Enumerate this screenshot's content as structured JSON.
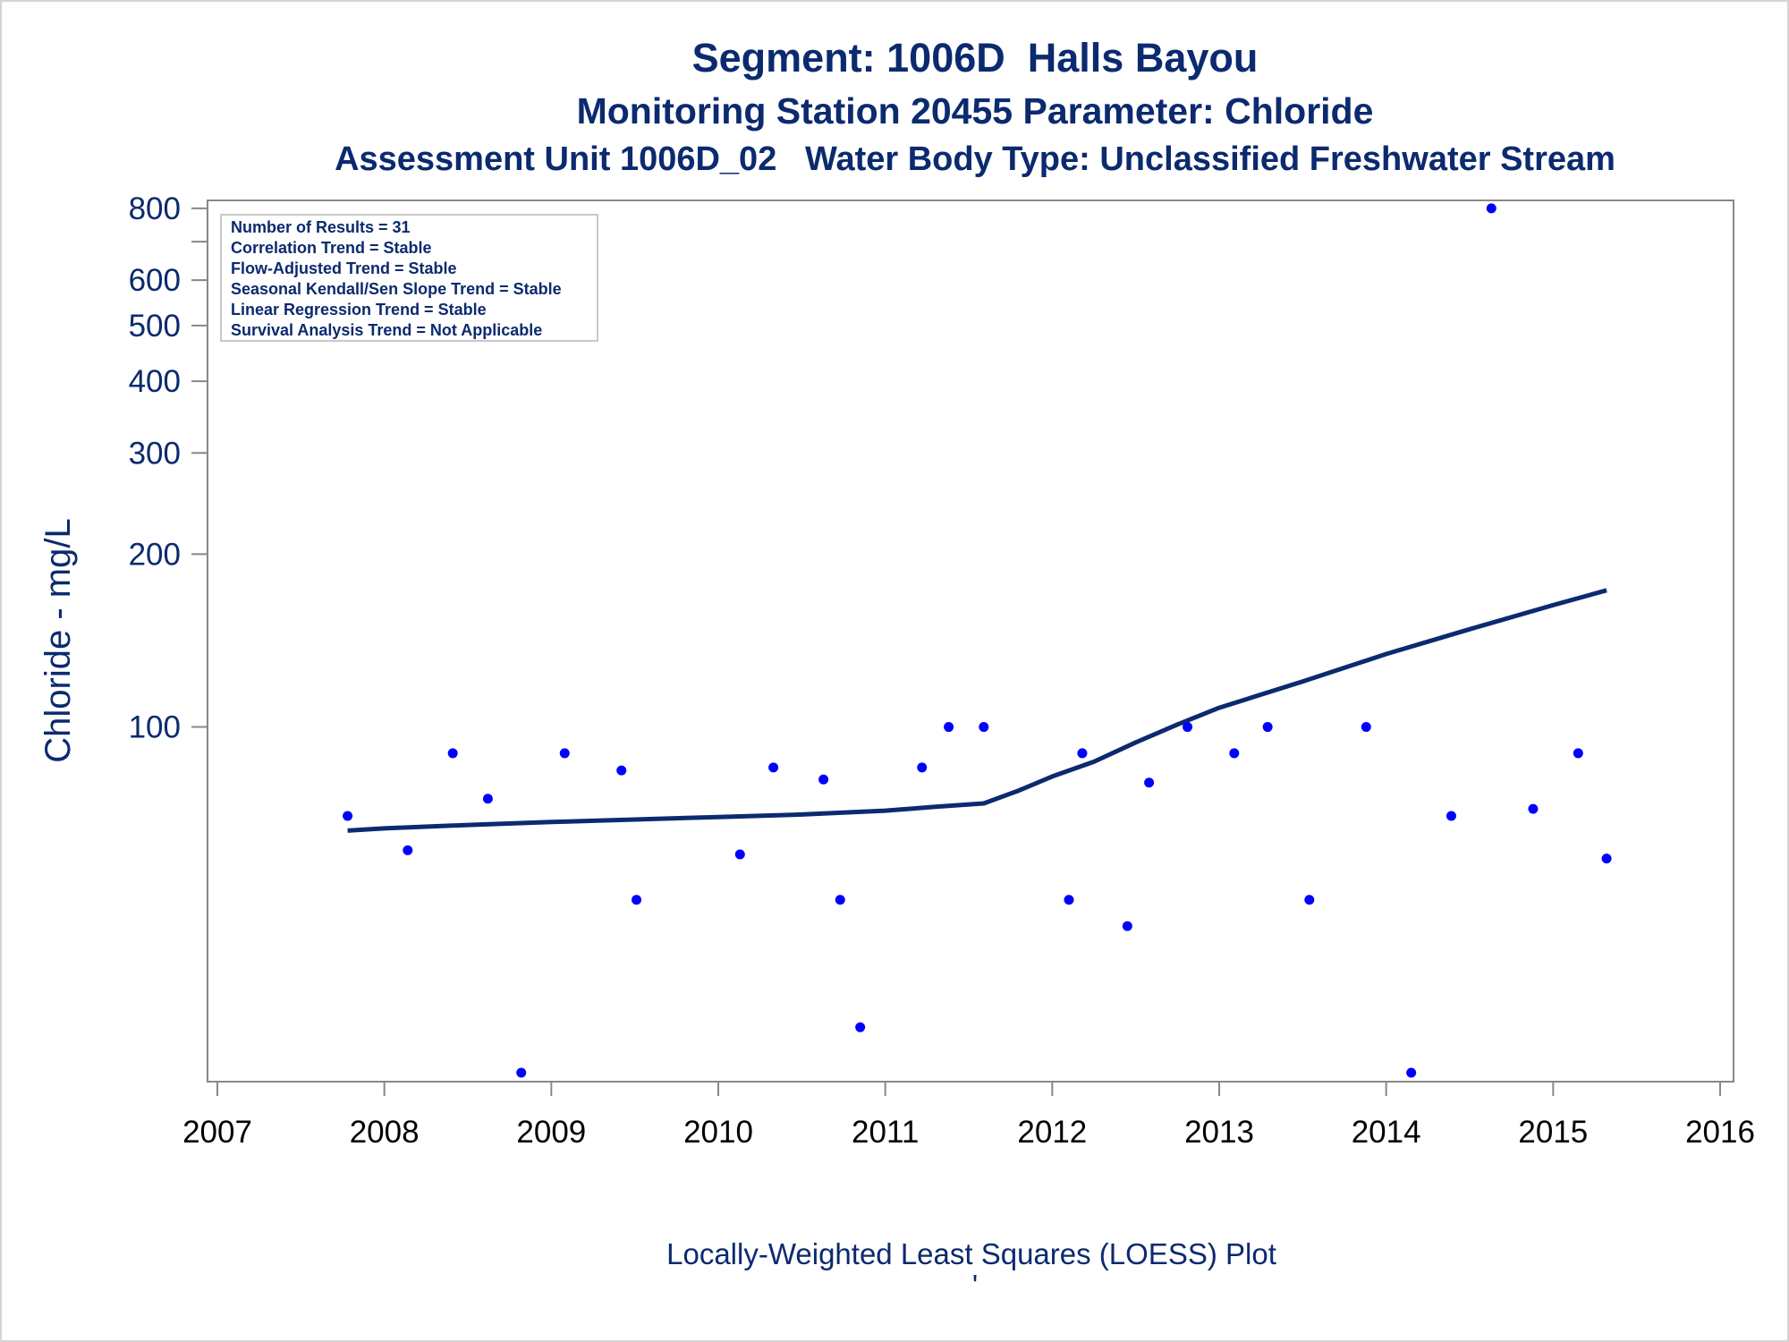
{
  "chart_data": {
    "type": "scatter",
    "title": "Segment: 1006D  Halls Bayou",
    "subtitle": "Monitoring Station 20455 Parameter: Chloride",
    "subtitle2": "Assessment Unit 1006D_02   Water Body Type: Unclassified Freshwater Stream",
    "xlabel": "Locally-Weighted Least Squares (LOESS) Plot",
    "footnote": "'",
    "ylabel": "Chloride - mg/L",
    "y_scale": "log",
    "xlim": [
      2007,
      2016
    ],
    "ylim": [
      25,
      820
    ],
    "x_ticks": [
      "2007",
      "2008",
      "2009",
      "2010",
      "2011",
      "2012",
      "2013",
      "2014",
      "2015",
      "2016"
    ],
    "y_ticks": [
      {
        "value": 800,
        "label": "800"
      },
      {
        "value": 700,
        "label": ""
      },
      {
        "value": 600,
        "label": "600"
      },
      {
        "value": 500,
        "label": "500"
      },
      {
        "value": 400,
        "label": "400"
      },
      {
        "value": 300,
        "label": "300"
      },
      {
        "value": 200,
        "label": "200"
      },
      {
        "value": 100,
        "label": "100"
      }
    ],
    "grid": false,
    "legend_position": "top-left",
    "info_box": [
      "Number of Results = 31",
      "Correlation Trend = Stable",
      "Flow-Adjusted Trend = Stable",
      "Seasonal Kendall/Sen Slope Trend = Stable",
      "Linear Regression Trend = Stable",
      "Survival Analysis Trend = Not Applicable"
    ],
    "points": [
      {
        "x": 2007.78,
        "y": 70
      },
      {
        "x": 2008.14,
        "y": 61
      },
      {
        "x": 2008.41,
        "y": 90
      },
      {
        "x": 2008.62,
        "y": 75
      },
      {
        "x": 2008.82,
        "y": 25
      },
      {
        "x": 2009.08,
        "y": 90
      },
      {
        "x": 2009.42,
        "y": 84
      },
      {
        "x": 2009.51,
        "y": 50
      },
      {
        "x": 2010.13,
        "y": 60
      },
      {
        "x": 2010.33,
        "y": 85
      },
      {
        "x": 2010.63,
        "y": 81
      },
      {
        "x": 2010.73,
        "y": 50
      },
      {
        "x": 2010.85,
        "y": 30
      },
      {
        "x": 2011.22,
        "y": 85
      },
      {
        "x": 2011.38,
        "y": 100
      },
      {
        "x": 2011.59,
        "y": 100
      },
      {
        "x": 2012.1,
        "y": 50
      },
      {
        "x": 2012.18,
        "y": 90
      },
      {
        "x": 2012.45,
        "y": 45
      },
      {
        "x": 2012.58,
        "y": 80
      },
      {
        "x": 2012.81,
        "y": 100
      },
      {
        "x": 2013.09,
        "y": 90
      },
      {
        "x": 2013.29,
        "y": 100
      },
      {
        "x": 2013.54,
        "y": 50
      },
      {
        "x": 2013.88,
        "y": 100
      },
      {
        "x": 2014.15,
        "y": 25
      },
      {
        "x": 2014.39,
        "y": 70
      },
      {
        "x": 2014.63,
        "y": 800
      },
      {
        "x": 2014.88,
        "y": 72
      },
      {
        "x": 2015.15,
        "y": 90
      },
      {
        "x": 2015.32,
        "y": 59
      }
    ],
    "loess": {
      "x": [
        2007.78,
        2008.0,
        2008.5,
        2009.0,
        2009.5,
        2010.0,
        2010.5,
        2011.0,
        2011.3,
        2011.59,
        2011.8,
        2012.0,
        2012.25,
        2012.5,
        2012.75,
        2013.0,
        2013.5,
        2014.0,
        2014.5,
        2015.0,
        2015.32
      ],
      "y": [
        66,
        66.6,
        67.5,
        68.3,
        69.0,
        69.7,
        70.4,
        71.5,
        72.6,
        73.6,
        77.5,
        82,
        87,
        94,
        101,
        108,
        120,
        134,
        148,
        163,
        173
      ]
    },
    "colors": {
      "points": "#0000ff",
      "line": "#0b2a6f",
      "text": "#0b2a6f",
      "axis": "#888888"
    }
  }
}
